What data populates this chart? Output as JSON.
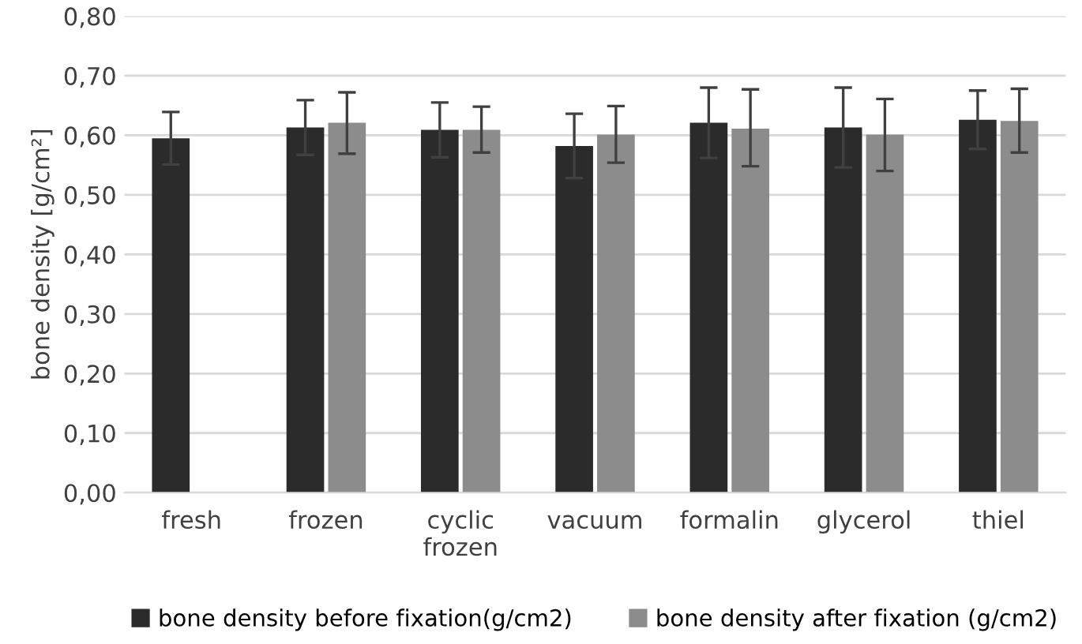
{
  "chart_data": {
    "type": "bar",
    "ylabel": "bone density [g/cm²]",
    "categories": [
      "fresh",
      "frozen",
      "cyclic\nfrozen",
      "vacuum",
      "formalin",
      "glycerol",
      "thiel"
    ],
    "series": [
      {
        "name": "bone density before fixation(g/cm2)",
        "color": "#2b2b2b",
        "values": [
          0.595,
          0.613,
          0.609,
          0.582,
          0.621,
          0.613,
          0.626
        ],
        "errors": [
          0.044,
          0.046,
          0.046,
          0.054,
          0.059,
          0.067,
          0.049
        ]
      },
      {
        "name": "bone density after fixation (g/cm2)",
        "color": "#8c8c8c",
        "values": [
          null,
          0.621,
          0.609,
          0.601,
          0.611,
          0.601,
          0.624
        ],
        "errors": [
          null,
          [
            0.569,
            0.672
          ],
          [
            0.571,
            0.648
          ],
          [
            0.554,
            0.649
          ],
          [
            0.548,
            0.677
          ],
          [
            0.54,
            0.661
          ],
          [
            0.571,
            0.678
          ]
        ]
      }
    ],
    "ylim": [
      0,
      0.8
    ],
    "yticks": [
      {
        "value": 0,
        "label": "0,00"
      },
      {
        "value": 0.1,
        "label": "0,10"
      },
      {
        "value": 0.2,
        "label": "0,20"
      },
      {
        "value": 0.3,
        "label": "0,30"
      },
      {
        "value": 0.4,
        "label": "0,40"
      },
      {
        "value": 0.5,
        "label": "0,50"
      },
      {
        "value": 0.6,
        "label": "0,60"
      },
      {
        "value": 0.7,
        "label": "0,70"
      },
      {
        "value": 0.8,
        "label": "0,80"
      }
    ],
    "grid": "y",
    "legend": "bottom"
  }
}
